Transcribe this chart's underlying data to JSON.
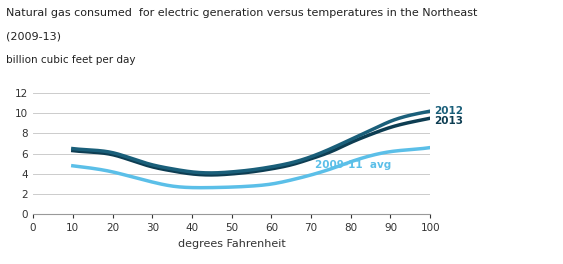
{
  "title_line1": "Natural gas consumed  for electric generation versus temperatures in the Northeast",
  "title_line2": "(2009-13)",
  "ylabel": "billion cubic feet per day",
  "xlabel": "degrees Fahrenheit",
  "xlim": [
    0,
    100
  ],
  "ylim": [
    0,
    12
  ],
  "xticks": [
    0,
    10,
    20,
    30,
    40,
    50,
    60,
    70,
    80,
    90,
    100
  ],
  "yticks": [
    0,
    2,
    4,
    6,
    8,
    10,
    12
  ],
  "color_2012": "#1a5f7a",
  "color_2013": "#0d3d52",
  "color_avg": "#5bbfe8",
  "label_2012": "2012",
  "label_2013": "2013",
  "label_avg": "2009-11  avg",
  "line_width": 2.5,
  "series_x": [
    10,
    15,
    20,
    25,
    30,
    35,
    40,
    45,
    50,
    55,
    60,
    65,
    70,
    75,
    80,
    85,
    90,
    95,
    100
  ],
  "series_2012_y": [
    6.5,
    6.35,
    6.1,
    5.5,
    4.9,
    4.5,
    4.2,
    4.1,
    4.2,
    4.4,
    4.7,
    5.1,
    5.7,
    6.5,
    7.4,
    8.3,
    9.2,
    9.8,
    10.2
  ],
  "series_2013_y": [
    6.3,
    6.15,
    5.9,
    5.3,
    4.7,
    4.3,
    4.0,
    3.9,
    4.0,
    4.2,
    4.5,
    4.9,
    5.5,
    6.2,
    7.1,
    7.9,
    8.6,
    9.1,
    9.5
  ],
  "series_avg_y": [
    4.8,
    4.55,
    4.2,
    3.7,
    3.2,
    2.8,
    2.65,
    2.65,
    2.7,
    2.8,
    3.0,
    3.4,
    3.9,
    4.5,
    5.2,
    5.8,
    6.2,
    6.4,
    6.6
  ],
  "background_color": "#ffffff",
  "grid_color": "#cccccc"
}
